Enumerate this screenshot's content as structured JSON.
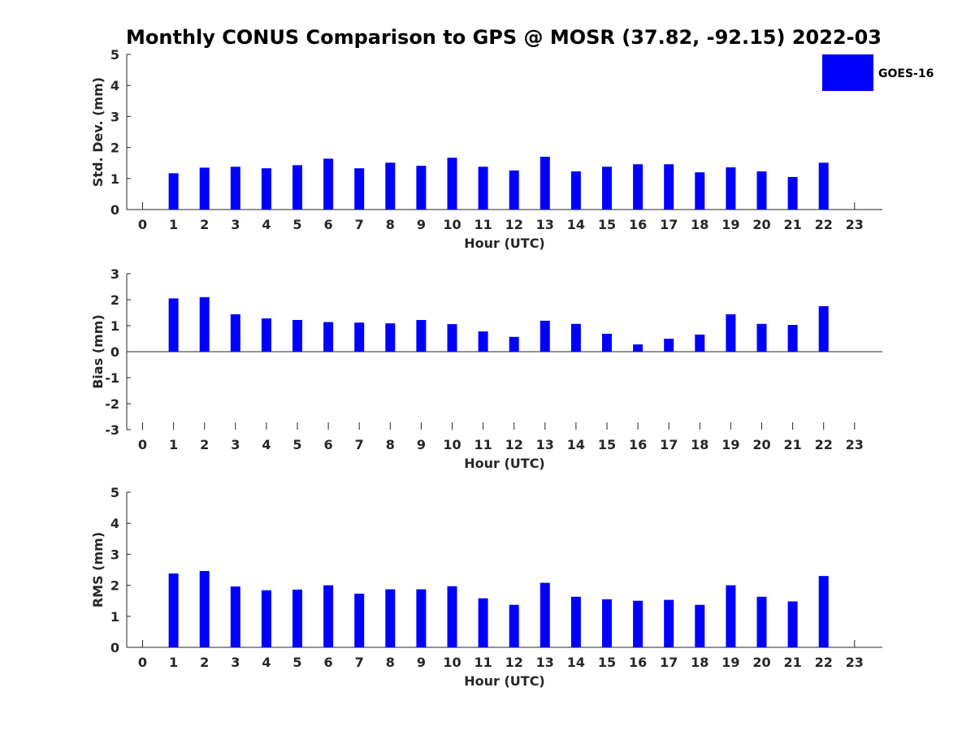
{
  "colors": {
    "series": "#0000ff",
    "axis": "#262626"
  },
  "chart_data": [
    {
      "type": "bar",
      "title": "Monthly CONUS Comparison to GPS @ MOSR (37.82, -92.15) 2022-03",
      "xlabel": "Hour (UTC)",
      "ylabel": "Std. Dev. (mm)",
      "ylim": [
        0,
        5
      ],
      "yticks": [
        "0",
        "1",
        "2",
        "3",
        "4",
        "5"
      ],
      "categories": [
        "0",
        "1",
        "2",
        "3",
        "4",
        "5",
        "6",
        "7",
        "8",
        "9",
        "10",
        "11",
        "12",
        "13",
        "14",
        "15",
        "16",
        "17",
        "18",
        "19",
        "20",
        "21",
        "22",
        "23"
      ],
      "legend": {
        "position": "top-right",
        "entries": [
          "GOES-16"
        ]
      },
      "series": [
        {
          "name": "GOES-16",
          "color": "#0000ff",
          "values": [
            null,
            1.17,
            1.35,
            1.38,
            1.33,
            1.43,
            1.64,
            1.33,
            1.51,
            1.41,
            1.67,
            1.38,
            1.26,
            1.7,
            1.23,
            1.38,
            1.46,
            1.46,
            1.2,
            1.36,
            1.23,
            1.05,
            1.51,
            null
          ]
        }
      ]
    },
    {
      "type": "bar",
      "xlabel": "Hour (UTC)",
      "ylabel": "Bias (mm)",
      "ylim": [
        -3,
        3
      ],
      "yticks": [
        "-3",
        "-2",
        "-1",
        "0",
        "1",
        "2",
        "3"
      ],
      "categories": [
        "0",
        "1",
        "2",
        "3",
        "4",
        "5",
        "6",
        "7",
        "8",
        "9",
        "10",
        "11",
        "12",
        "13",
        "14",
        "15",
        "16",
        "17",
        "18",
        "19",
        "20",
        "21",
        "22",
        "23"
      ],
      "series": [
        {
          "name": "GOES-16",
          "color": "#0000ff",
          "values": [
            null,
            2.05,
            2.1,
            1.44,
            1.28,
            1.22,
            1.14,
            1.12,
            1.09,
            1.22,
            1.06,
            0.78,
            0.57,
            1.19,
            1.07,
            0.69,
            0.28,
            0.5,
            0.66,
            1.44,
            1.07,
            1.03,
            1.75,
            null
          ]
        }
      ]
    },
    {
      "type": "bar",
      "xlabel": "Hour (UTC)",
      "ylabel": "RMS (mm)",
      "ylim": [
        0,
        5
      ],
      "yticks": [
        "0",
        "1",
        "2",
        "3",
        "4",
        "5"
      ],
      "categories": [
        "0",
        "1",
        "2",
        "3",
        "4",
        "5",
        "6",
        "7",
        "8",
        "9",
        "10",
        "11",
        "12",
        "13",
        "14",
        "15",
        "16",
        "17",
        "18",
        "19",
        "20",
        "21",
        "22",
        "23"
      ],
      "series": [
        {
          "name": "GOES-16",
          "color": "#0000ff",
          "values": [
            null,
            2.38,
            2.46,
            1.96,
            1.84,
            1.86,
            2.0,
            1.73,
            1.87,
            1.87,
            1.97,
            1.58,
            1.37,
            2.08,
            1.63,
            1.55,
            1.5,
            1.53,
            1.37,
            2.0,
            1.63,
            1.48,
            2.3,
            null
          ]
        }
      ]
    }
  ]
}
